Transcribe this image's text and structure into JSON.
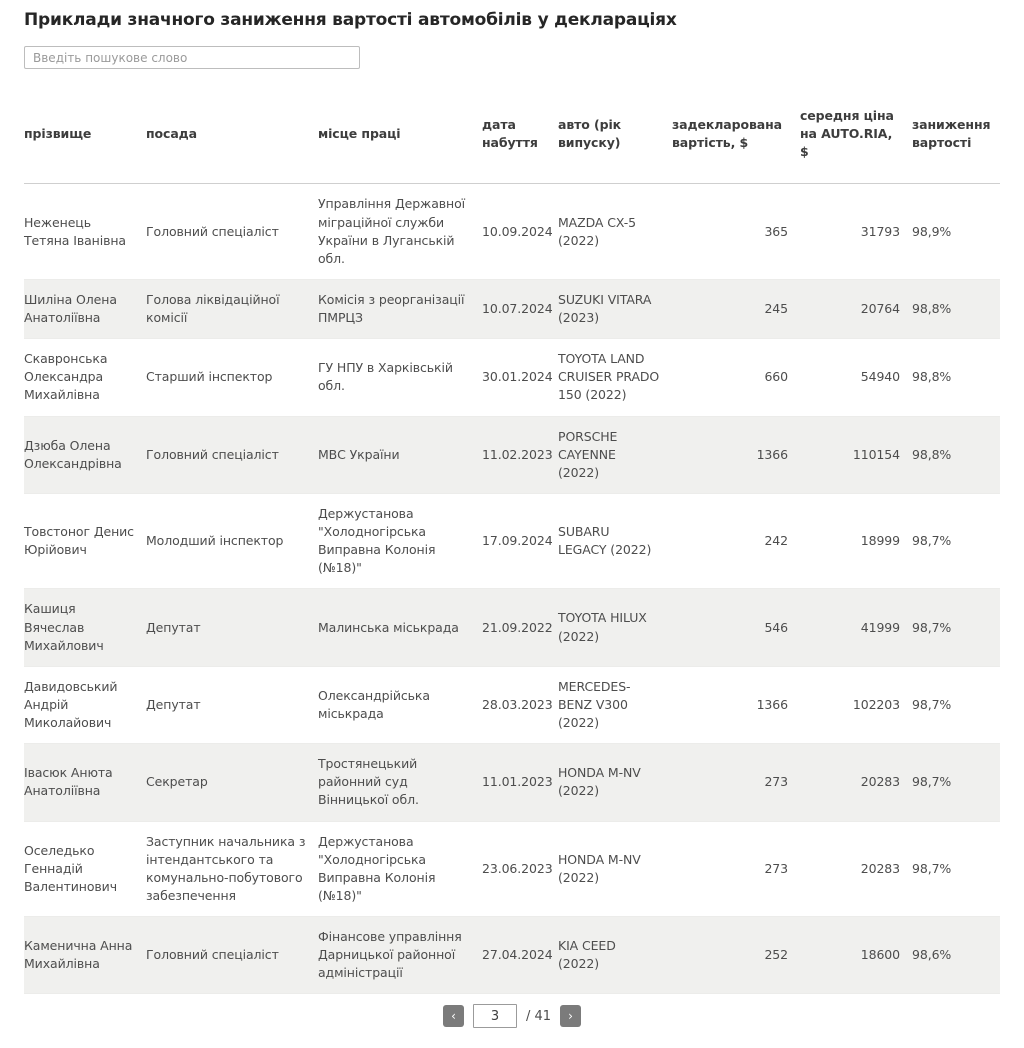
{
  "page": {
    "title": "Приклади значного заниження вартості автомобілів у деклараціях"
  },
  "search": {
    "placeholder": "Введіть пошукове слово",
    "value": ""
  },
  "table": {
    "columns": [
      "прізвище",
      "посада",
      "місце праці",
      "дата набуття",
      "авто (рік випуску)",
      "задекларована вартість, $",
      "середня ціна на AUTO.RIA, $",
      "заниження вартості"
    ],
    "rows": [
      [
        "Неженець Тетяна Іванівна",
        "Головний спеціаліст",
        "Управління Державної міграційної служби України в Луганській обл.",
        "10.09.2024",
        "MAZDA CX-5 (2022)",
        "365",
        "31793",
        "98,9%"
      ],
      [
        "Шиліна Олена Анатоліївна",
        "Голова ліквідаційної комісії",
        "Комісія з реорганізації ПМРЦЗ",
        "10.07.2024",
        "SUZUKI VITARA (2023)",
        "245",
        "20764",
        "98,8%"
      ],
      [
        "Скавронська Олександра Михайлівна",
        "Старший інспектор",
        "ГУ НПУ в Харківській обл.",
        "30.01.2024",
        "TOYOTA LAND CRUISER PRADO 150 (2022)",
        "660",
        "54940",
        "98,8%"
      ],
      [
        "Дзюба Олена Олександрівна",
        "Головний спеціаліст",
        "МВС України",
        "11.02.2023",
        "PORSCHE CAYENNE (2022)",
        "1366",
        "110154",
        "98,8%"
      ],
      [
        "Товстоног Денис Юрійович",
        "Молодший інспектор",
        "Держустанова \"Холодногірська Виправна Колонія (№18)\"",
        "17.09.2024",
        "SUBARU LEGACY (2022)",
        "242",
        "18999",
        "98,7%"
      ],
      [
        "Кашиця Вячеслав Михайлович",
        "Депутат",
        "Малинська міськрада",
        "21.09.2022",
        "TOYOTA HILUX (2022)",
        "546",
        "41999",
        "98,7%"
      ],
      [
        "Давидовський Андрій Миколайович",
        "Депутат",
        "Олександрійська міськрада",
        "28.03.2023",
        "MERCEDES-BENZ V300 (2022)",
        "1366",
        "102203",
        "98,7%"
      ],
      [
        "Івасюк Анюта Анатоліївна",
        "Секретар",
        "Тростянецький районний суд Вінницької обл.",
        "11.01.2023",
        "HONDA M-NV (2022)",
        "273",
        "20283",
        "98,7%"
      ],
      [
        "Оселедько Геннадій Валентинович",
        "Заступник начальника з інтендантського та комунально-побутового забезпечення",
        "Держустанова \"Холодногірська Виправна Колонія (№18)\"",
        "23.06.2023",
        "HONDA M-NV (2022)",
        "273",
        "20283",
        "98,7%"
      ],
      [
        "Каменична Анна Михайлівна",
        "Головний спеціаліст",
        "Фінансове управління Дарницької районної адміністрації",
        "27.04.2024",
        "KIA CEED (2022)",
        "252",
        "18600",
        "98,6%"
      ]
    ]
  },
  "pagination": {
    "prev_label": "‹",
    "next_label": "›",
    "current_page": "3",
    "total_label": "/ 41"
  },
  "colors": {
    "stripe_background": "#f0f0ee",
    "header_text": "#3d3d3d",
    "body_text": "#4d4d4d",
    "pager_button_background": "#7b7b7b"
  }
}
